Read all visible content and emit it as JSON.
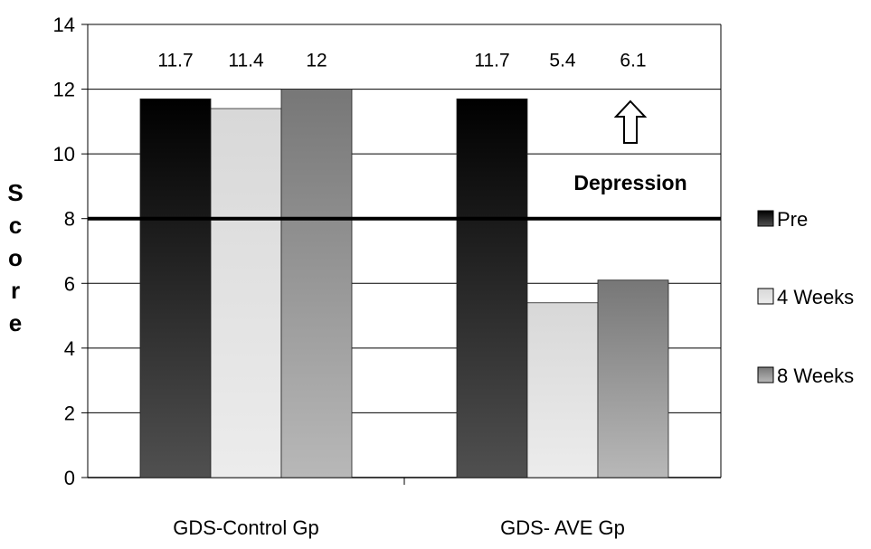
{
  "chart_data": {
    "type": "bar",
    "categories": [
      "GDS-Control Gp",
      "GDS- AVE Gp"
    ],
    "series": [
      {
        "name": "Pre",
        "values": [
          11.7,
          11.7
        ],
        "labels": [
          "11.7",
          "11.7"
        ],
        "color_top": "#000000",
        "color_bottom": "#505050"
      },
      {
        "name": "4 Weeks",
        "values": [
          11.4,
          5.4
        ],
        "labels": [
          "11.4",
          "5.4"
        ],
        "color_top": "#d8d8d8",
        "color_bottom": "#ececec"
      },
      {
        "name": "8 Weeks",
        "values": [
          12,
          6.1
        ],
        "labels": [
          "12",
          "6.1"
        ],
        "color_top": "#777777",
        "color_bottom": "#b8b8b8"
      }
    ],
    "ylabel": "Score",
    "ylim": [
      0,
      14
    ],
    "yticks": [
      "0",
      "2",
      "4",
      "6",
      "8",
      "10",
      "12",
      "14"
    ],
    "grid": true,
    "legend_position": "right",
    "threshold": {
      "value": 8,
      "label": "Depression",
      "arrow": "up"
    }
  }
}
